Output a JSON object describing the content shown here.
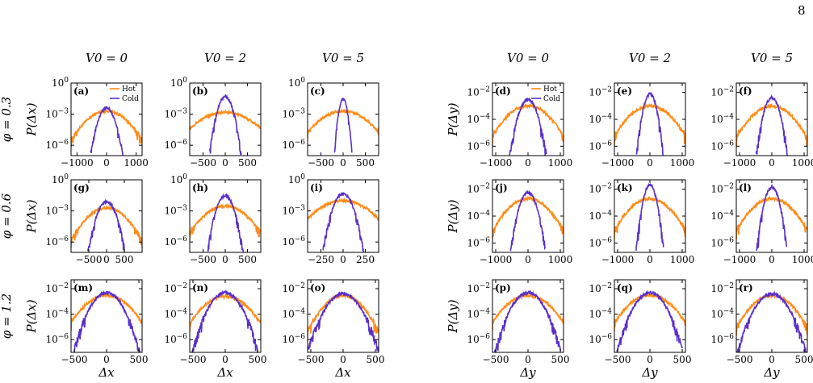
{
  "page": {
    "number": "8"
  },
  "colors": {
    "hot": "#ff8c1a",
    "cold": "#5a2fc9",
    "axis": "#000000"
  },
  "column_titles": [
    "V0 = 0",
    "V0 = 2",
    "V0 = 5",
    "V0 = 0",
    "V0 = 2",
    "V0 = 5"
  ],
  "row_labels": [
    "φ = 0.3",
    "φ = 0.6",
    "φ = 1.2"
  ],
  "legend": [
    "Hot",
    "Cold"
  ],
  "chart_data": [
    {
      "panel": "(a)",
      "type": "line",
      "scale_y": "log",
      "xlabel": "",
      "ylabel": "P(Δx)",
      "xlim": [
        -1200,
        1200
      ],
      "ylim": [
        1e-07,
        1
      ],
      "xticks": [
        -1000,
        0,
        1000
      ],
      "yticks": [
        {
          "v": 1e-06,
          "label": "10^-6"
        },
        {
          "v": 0.001,
          "label": "10^-3"
        },
        {
          "v": 1,
          "label": "10^0"
        }
      ],
      "legend": true,
      "series": [
        {
          "name": "Hot",
          "peak": 0.002,
          "width": 330,
          "floor": 1e-07
        },
        {
          "name": "Cold",
          "peak": 0.004,
          "width": 120,
          "floor": 1e-07
        }
      ]
    },
    {
      "panel": "(b)",
      "type": "line",
      "scale_y": "log",
      "xlabel": "",
      "ylabel": "",
      "xlim": [
        -800,
        800
      ],
      "ylim": [
        1e-07,
        1
      ],
      "xticks": [
        -500,
        0,
        500
      ],
      "yticks": [
        {
          "v": 1e-06,
          "label": "10^-6"
        },
        {
          "v": 0.001,
          "label": "10^-3"
        },
        {
          "v": 1,
          "label": "10^0"
        }
      ],
      "legend": false,
      "series": [
        {
          "name": "Hot",
          "peak": 0.0015,
          "width": 300,
          "floor": 1e-07
        },
        {
          "name": "Cold",
          "peak": 0.05,
          "width": 70,
          "floor": 1e-07
        }
      ]
    },
    {
      "panel": "(c)",
      "type": "line",
      "scale_y": "log",
      "xlabel": "",
      "ylabel": "",
      "xlim": [
        -800,
        800
      ],
      "ylim": [
        1e-07,
        1
      ],
      "xticks": [
        -500,
        0,
        500
      ],
      "yticks": [
        {
          "v": 1e-06,
          "label": "10^-6"
        },
        {
          "v": 0.001,
          "label": "10^-3"
        },
        {
          "v": 1,
          "label": "10^0"
        }
      ],
      "legend": false,
      "series": [
        {
          "name": "Hot",
          "peak": 0.002,
          "width": 260,
          "floor": 1e-07
        },
        {
          "name": "Cold",
          "peak": 0.03,
          "width": 40,
          "floor": 1e-07
        }
      ]
    },
    {
      "panel": "(d)",
      "type": "line",
      "scale_y": "log",
      "xlabel": "",
      "ylabel": "P(Δy)",
      "xlim": [
        -1100,
        1100
      ],
      "ylim": [
        2e-07,
        0.05
      ],
      "xticks": [
        -1000,
        0,
        1000
      ],
      "yticks": [
        {
          "v": 1e-06,
          "label": "10^-6"
        },
        {
          "v": 0.0001,
          "label": "10^-4"
        },
        {
          "v": 0.01,
          "label": "10^-2"
        }
      ],
      "legend": true,
      "series": [
        {
          "name": "Hot",
          "peak": 0.001,
          "width": 340,
          "floor": 2e-07
        },
        {
          "name": "Cold",
          "peak": 0.003,
          "width": 130,
          "floor": 2e-07
        }
      ]
    },
    {
      "panel": "(e)",
      "type": "line",
      "scale_y": "log",
      "xlabel": "",
      "ylabel": "",
      "xlim": [
        -1100,
        1100
      ],
      "ylim": [
        2e-07,
        0.05
      ],
      "xticks": [
        -1000,
        0,
        1000
      ],
      "yticks": [
        {
          "v": 1e-06,
          "label": "10^-6"
        },
        {
          "v": 0.0001,
          "label": "10^-4"
        },
        {
          "v": 0.01,
          "label": "10^-2"
        }
      ],
      "legend": false,
      "series": [
        {
          "name": "Hot",
          "peak": 0.001,
          "width": 340,
          "floor": 2e-07
        },
        {
          "name": "Cold",
          "peak": 0.008,
          "width": 90,
          "floor": 2e-07
        }
      ]
    },
    {
      "panel": "(f)",
      "type": "line",
      "scale_y": "log",
      "xlabel": "",
      "ylabel": "",
      "xlim": [
        -1100,
        1100
      ],
      "ylim": [
        2e-07,
        0.05
      ],
      "xticks": [
        -1000,
        0,
        1000
      ],
      "yticks": [
        {
          "v": 1e-06,
          "label": "10^-6"
        },
        {
          "v": 0.0001,
          "label": "10^-4"
        },
        {
          "v": 0.01,
          "label": "10^-2"
        }
      ],
      "legend": false,
      "series": [
        {
          "name": "Hot",
          "peak": 0.001,
          "width": 330,
          "floor": 2e-07
        },
        {
          "name": "Cold",
          "peak": 0.004,
          "width": 110,
          "floor": 2e-07
        }
      ]
    },
    {
      "panel": "(g)",
      "type": "line",
      "scale_y": "log",
      "xlabel": "",
      "ylabel": "P(Δx)",
      "xlim": [
        -1000,
        1000
      ],
      "ylim": [
        1e-07,
        1
      ],
      "xticks": [
        -500,
        0,
        500
      ],
      "yticks": [
        {
          "v": 1e-06,
          "label": "10^-6"
        },
        {
          "v": 0.001,
          "label": "10^-3"
        },
        {
          "v": 1,
          "label": "10^0"
        }
      ],
      "legend": false,
      "series": [
        {
          "name": "Hot",
          "peak": 0.002,
          "width": 260,
          "floor": 1e-07
        },
        {
          "name": "Cold",
          "peak": 0.008,
          "width": 110,
          "floor": 1e-07
        }
      ]
    },
    {
      "panel": "(h)",
      "type": "line",
      "scale_y": "log",
      "xlabel": "",
      "ylabel": "",
      "xlim": [
        -800,
        800
      ],
      "ylim": [
        1e-07,
        1
      ],
      "xticks": [
        -500,
        0,
        500
      ],
      "yticks": [
        {
          "v": 1e-06,
          "label": "10^-6"
        },
        {
          "v": 0.001,
          "label": "10^-3"
        },
        {
          "v": 1,
          "label": "10^0"
        }
      ],
      "legend": false,
      "series": [
        {
          "name": "Hot",
          "peak": 0.003,
          "width": 230,
          "floor": 1e-07
        },
        {
          "name": "Cold",
          "peak": 0.03,
          "width": 80,
          "floor": 1e-07
        }
      ]
    },
    {
      "panel": "(i)",
      "type": "line",
      "scale_y": "log",
      "xlabel": "",
      "ylabel": "",
      "xlim": [
        -400,
        400
      ],
      "ylim": [
        1e-07,
        1
      ],
      "xticks": [
        -250,
        0,
        250
      ],
      "yticks": [
        {
          "v": 1e-06,
          "label": "10^-6"
        },
        {
          "v": 0.001,
          "label": "10^-3"
        },
        {
          "v": 1,
          "label": "10^0"
        }
      ],
      "legend": false,
      "series": [
        {
          "name": "Hot",
          "peak": 0.01,
          "width": 140,
          "floor": 1e-07
        },
        {
          "name": "Cold",
          "peak": 0.05,
          "width": 45,
          "floor": 1e-07
        }
      ]
    },
    {
      "panel": "(j)",
      "type": "line",
      "scale_y": "log",
      "xlabel": "",
      "ylabel": "P(Δy)",
      "xlim": [
        -1100,
        1100
      ],
      "ylim": [
        2e-07,
        0.05
      ],
      "xticks": [
        -1000,
        0,
        1000
      ],
      "yticks": [
        {
          "v": 1e-06,
          "label": "10^-6"
        },
        {
          "v": 0.0001,
          "label": "10^-4"
        },
        {
          "v": 0.01,
          "label": "10^-2"
        }
      ],
      "legend": false,
      "series": [
        {
          "name": "Hot",
          "peak": 0.002,
          "width": 330,
          "floor": 2e-07
        },
        {
          "name": "Cold",
          "peak": 0.006,
          "width": 120,
          "floor": 2e-07
        }
      ]
    },
    {
      "panel": "(k)",
      "type": "line",
      "scale_y": "log",
      "xlabel": "",
      "ylabel": "",
      "xlim": [
        -1100,
        1100
      ],
      "ylim": [
        2e-07,
        0.05
      ],
      "xticks": [
        -1000,
        0,
        1000
      ],
      "yticks": [
        {
          "v": 1e-06,
          "label": "10^-6"
        },
        {
          "v": 0.0001,
          "label": "10^-4"
        },
        {
          "v": 0.01,
          "label": "10^-2"
        }
      ],
      "legend": false,
      "series": [
        {
          "name": "Hot",
          "peak": 0.002,
          "width": 330,
          "floor": 2e-07
        },
        {
          "name": "Cold",
          "peak": 0.02,
          "width": 90,
          "floor": 2e-07
        }
      ]
    },
    {
      "panel": "(l)",
      "type": "line",
      "scale_y": "log",
      "xlabel": "",
      "ylabel": "",
      "xlim": [
        -1100,
        1100
      ],
      "ylim": [
        2e-07,
        0.05
      ],
      "xticks": [
        -1000,
        0,
        1000
      ],
      "yticks": [
        {
          "v": 1e-06,
          "label": "10^-6"
        },
        {
          "v": 0.0001,
          "label": "10^-4"
        },
        {
          "v": 0.01,
          "label": "10^-2"
        }
      ],
      "legend": false,
      "series": [
        {
          "name": "Hot",
          "peak": 0.002,
          "width": 330,
          "floor": 2e-07
        },
        {
          "name": "Cold",
          "peak": 0.015,
          "width": 100,
          "floor": 2e-07
        }
      ]
    },
    {
      "panel": "(m)",
      "type": "line",
      "scale_y": "log",
      "xlabel": "Δx",
      "ylabel": "P(Δx)",
      "xlim": [
        -550,
        550
      ],
      "ylim": [
        1e-07,
        0.05
      ],
      "xticks": [
        -500,
        0,
        500
      ],
      "yticks": [
        {
          "v": 1e-06,
          "label": "10^-6"
        },
        {
          "v": 0.0001,
          "label": "10^-4"
        },
        {
          "v": 0.01,
          "label": "10^-2"
        }
      ],
      "legend": false,
      "series": [
        {
          "name": "Hot",
          "peak": 0.003,
          "width": 175,
          "floor": 1e-07
        },
        {
          "name": "Cold",
          "peak": 0.005,
          "width": 110,
          "floor": 1e-07
        }
      ]
    },
    {
      "panel": "(n)",
      "type": "line",
      "scale_y": "log",
      "xlabel": "Δx",
      "ylabel": "",
      "xlim": [
        -550,
        550
      ],
      "ylim": [
        1e-07,
        0.05
      ],
      "xticks": [
        -500,
        0,
        500
      ],
      "yticks": [
        {
          "v": 1e-06,
          "label": "10^-6"
        },
        {
          "v": 0.0001,
          "label": "10^-4"
        },
        {
          "v": 0.01,
          "label": "10^-2"
        }
      ],
      "legend": false,
      "series": [
        {
          "name": "Hot",
          "peak": 0.0025,
          "width": 175,
          "floor": 1e-07
        },
        {
          "name": "Cold",
          "peak": 0.005,
          "width": 110,
          "floor": 1e-07
        }
      ]
    },
    {
      "panel": "(o)",
      "type": "line",
      "scale_y": "log",
      "xlabel": "Δx",
      "ylabel": "",
      "xlim": [
        -550,
        550
      ],
      "ylim": [
        1e-07,
        0.05
      ],
      "xticks": [
        -500,
        0,
        500
      ],
      "yticks": [
        {
          "v": 1e-06,
          "label": "10^-6"
        },
        {
          "v": 0.0001,
          "label": "10^-4"
        },
        {
          "v": 0.01,
          "label": "10^-2"
        }
      ],
      "legend": false,
      "series": [
        {
          "name": "Hot",
          "peak": 0.003,
          "width": 150,
          "floor": 1e-07
        },
        {
          "name": "Cold",
          "peak": 0.004,
          "width": 120,
          "floor": 1e-07
        }
      ]
    },
    {
      "panel": "(p)",
      "type": "line",
      "scale_y": "log",
      "xlabel": "Δy",
      "ylabel": "P(Δy)",
      "xlim": [
        -550,
        550
      ],
      "ylim": [
        1e-07,
        0.05
      ],
      "xticks": [
        -500,
        0,
        500
      ],
      "yticks": [
        {
          "v": 1e-06,
          "label": "10^-6"
        },
        {
          "v": 0.0001,
          "label": "10^-4"
        },
        {
          "v": 0.01,
          "label": "10^-2"
        }
      ],
      "legend": false,
      "series": [
        {
          "name": "Hot",
          "peak": 0.003,
          "width": 175,
          "floor": 1e-07
        },
        {
          "name": "Cold",
          "peak": 0.005,
          "width": 110,
          "floor": 1e-07
        }
      ]
    },
    {
      "panel": "(q)",
      "type": "line",
      "scale_y": "log",
      "xlabel": "Δy",
      "ylabel": "",
      "xlim": [
        -550,
        550
      ],
      "ylim": [
        1e-07,
        0.05
      ],
      "xticks": [
        -500,
        0,
        500
      ],
      "yticks": [
        {
          "v": 1e-06,
          "label": "10^-6"
        },
        {
          "v": 0.0001,
          "label": "10^-4"
        },
        {
          "v": 0.01,
          "label": "10^-2"
        }
      ],
      "legend": false,
      "series": [
        {
          "name": "Hot",
          "peak": 0.003,
          "width": 175,
          "floor": 1e-07
        },
        {
          "name": "Cold",
          "peak": 0.005,
          "width": 110,
          "floor": 1e-07
        }
      ]
    },
    {
      "panel": "(r)",
      "type": "line",
      "scale_y": "log",
      "xlabel": "Δy",
      "ylabel": "",
      "xlim": [
        -550,
        550
      ],
      "ylim": [
        1e-07,
        0.05
      ],
      "xticks": [
        -500,
        0,
        500
      ],
      "yticks": [
        {
          "v": 1e-06,
          "label": "10^-6"
        },
        {
          "v": 0.0001,
          "label": "10^-4"
        },
        {
          "v": 0.01,
          "label": "10^-2"
        }
      ],
      "legend": false,
      "series": [
        {
          "name": "Hot",
          "peak": 0.003,
          "width": 160,
          "floor": 1e-07
        },
        {
          "name": "Cold",
          "peak": 0.004,
          "width": 115,
          "floor": 1e-07
        }
      ]
    }
  ]
}
